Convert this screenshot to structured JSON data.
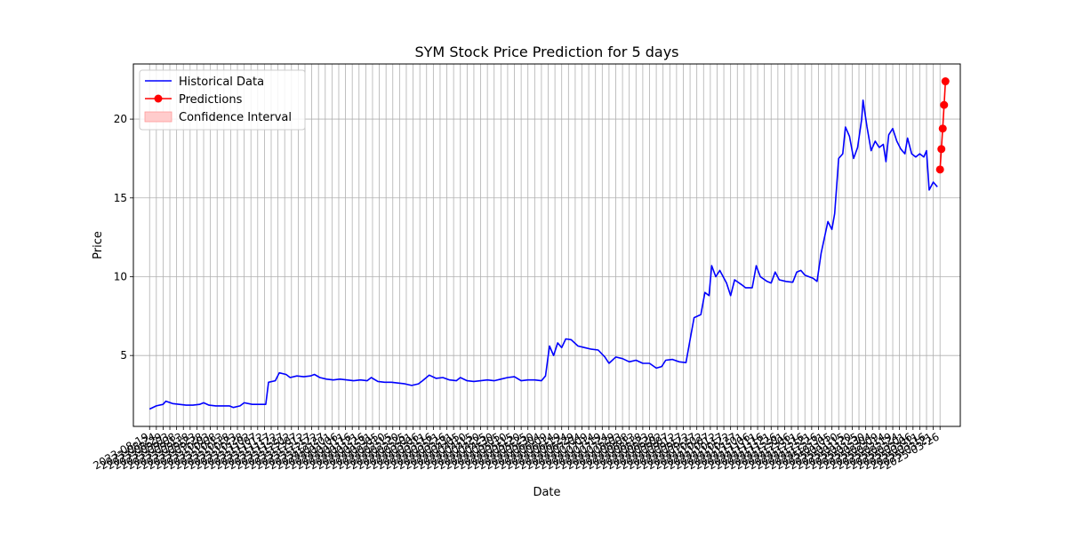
{
  "chart_data": {
    "type": "line",
    "title": "SYM Stock Price Prediction for 5 days",
    "xlabel": "Date",
    "ylabel": "Price",
    "grid": true,
    "legend_placement": "top-left",
    "legend": [
      "Historical Data",
      "Predictions",
      "Confidence Interval"
    ],
    "colors": {
      "historical": "#0000ff",
      "predictions": "#ff0000",
      "confidence": "#ffcccc",
      "grid": "#b0b0b0"
    },
    "xlim": [
      "2023-08-07",
      "2025-04-10"
    ],
    "ylim": [
      0.5,
      23.5
    ],
    "yticks": [
      5,
      10,
      15,
      20
    ],
    "xtick_start": "2023-08-19",
    "xtick_step_days": 5,
    "xtick_count": 118,
    "series": [
      {
        "name": "Historical Data",
        "style": "line",
        "points": [
          [
            "2023-08-19",
            1.6
          ],
          [
            "2023-08-24",
            1.8
          ],
          [
            "2023-08-29",
            1.9
          ],
          [
            "2023-08-31",
            2.1
          ],
          [
            "2023-09-05",
            1.95
          ],
          [
            "2023-09-10",
            1.9
          ],
          [
            "2023-09-15",
            1.85
          ],
          [
            "2023-09-20",
            1.85
          ],
          [
            "2023-09-25",
            1.9
          ],
          [
            "2023-09-28",
            2.0
          ],
          [
            "2023-10-02",
            1.85
          ],
          [
            "2023-10-07",
            1.8
          ],
          [
            "2023-10-12",
            1.8
          ],
          [
            "2023-10-17",
            1.8
          ],
          [
            "2023-10-20",
            1.7
          ],
          [
            "2023-10-25",
            1.8
          ],
          [
            "2023-10-28",
            2.0
          ],
          [
            "2023-11-03",
            1.9
          ],
          [
            "2023-11-08",
            1.9
          ],
          [
            "2023-11-13",
            1.9
          ],
          [
            "2023-11-15",
            3.3
          ],
          [
            "2023-11-20",
            3.4
          ],
          [
            "2023-11-23",
            3.9
          ],
          [
            "2023-11-28",
            3.8
          ],
          [
            "2023-12-01",
            3.6
          ],
          [
            "2023-12-06",
            3.7
          ],
          [
            "2023-12-11",
            3.65
          ],
          [
            "2023-12-16",
            3.7
          ],
          [
            "2023-12-19",
            3.8
          ],
          [
            "2023-12-23",
            3.6
          ],
          [
            "2023-12-28",
            3.5
          ],
          [
            "2024-01-02",
            3.45
          ],
          [
            "2024-01-07",
            3.5
          ],
          [
            "2024-01-12",
            3.45
          ],
          [
            "2024-01-17",
            3.4
          ],
          [
            "2024-01-22",
            3.45
          ],
          [
            "2024-01-27",
            3.4
          ],
          [
            "2024-01-30",
            3.6
          ],
          [
            "2024-02-04",
            3.35
          ],
          [
            "2024-02-09",
            3.3
          ],
          [
            "2024-02-14",
            3.3
          ],
          [
            "2024-02-19",
            3.25
          ],
          [
            "2024-02-24",
            3.2
          ],
          [
            "2024-02-29",
            3.1
          ],
          [
            "2024-03-05",
            3.2
          ],
          [
            "2024-03-08",
            3.4
          ],
          [
            "2024-03-13",
            3.75
          ],
          [
            "2024-03-18",
            3.55
          ],
          [
            "2024-03-23",
            3.6
          ],
          [
            "2024-03-28",
            3.45
          ],
          [
            "2024-04-02",
            3.4
          ],
          [
            "2024-04-05",
            3.6
          ],
          [
            "2024-04-10",
            3.4
          ],
          [
            "2024-04-15",
            3.35
          ],
          [
            "2024-04-20",
            3.4
          ],
          [
            "2024-04-25",
            3.45
          ],
          [
            "2024-04-30",
            3.4
          ],
          [
            "2024-05-05",
            3.5
          ],
          [
            "2024-05-10",
            3.6
          ],
          [
            "2024-05-15",
            3.65
          ],
          [
            "2024-05-20",
            3.4
          ],
          [
            "2024-05-25",
            3.45
          ],
          [
            "2024-05-30",
            3.45
          ],
          [
            "2024-06-04",
            3.4
          ],
          [
            "2024-06-07",
            3.7
          ],
          [
            "2024-06-10",
            5.6
          ],
          [
            "2024-06-13",
            5.0
          ],
          [
            "2024-06-16",
            5.8
          ],
          [
            "2024-06-19",
            5.5
          ],
          [
            "2024-06-22",
            6.05
          ],
          [
            "2024-06-26",
            6.0
          ],
          [
            "2024-07-01",
            5.6
          ],
          [
            "2024-07-06",
            5.5
          ],
          [
            "2024-07-11",
            5.4
          ],
          [
            "2024-07-16",
            5.35
          ],
          [
            "2024-07-21",
            4.9
          ],
          [
            "2024-07-24",
            4.5
          ],
          [
            "2024-07-29",
            4.9
          ],
          [
            "2024-08-03",
            4.8
          ],
          [
            "2024-08-08",
            4.6
          ],
          [
            "2024-08-13",
            4.7
          ],
          [
            "2024-08-18",
            4.5
          ],
          [
            "2024-08-23",
            4.5
          ],
          [
            "2024-08-28",
            4.2
          ],
          [
            "2024-09-01",
            4.3
          ],
          [
            "2024-09-04",
            4.7
          ],
          [
            "2024-09-09",
            4.75
          ],
          [
            "2024-09-14",
            4.6
          ],
          [
            "2024-09-19",
            4.55
          ],
          [
            "2024-09-22",
            6.0
          ],
          [
            "2024-09-25",
            7.4
          ],
          [
            "2024-09-30",
            7.6
          ],
          [
            "2024-10-03",
            9.0
          ],
          [
            "2024-10-06",
            8.8
          ],
          [
            "2024-10-08",
            10.7
          ],
          [
            "2024-10-11",
            10.0
          ],
          [
            "2024-10-14",
            10.4
          ],
          [
            "2024-10-19",
            9.6
          ],
          [
            "2024-10-22",
            8.8
          ],
          [
            "2024-10-25",
            9.8
          ],
          [
            "2024-10-30",
            9.5
          ],
          [
            "2024-11-02",
            9.3
          ],
          [
            "2024-11-07",
            9.3
          ],
          [
            "2024-11-10",
            10.7
          ],
          [
            "2024-11-13",
            10.0
          ],
          [
            "2024-11-18",
            9.7
          ],
          [
            "2024-11-21",
            9.6
          ],
          [
            "2024-11-24",
            10.3
          ],
          [
            "2024-11-27",
            9.8
          ],
          [
            "2024-12-02",
            9.7
          ],
          [
            "2024-12-07",
            9.65
          ],
          [
            "2024-12-10",
            10.3
          ],
          [
            "2024-12-13",
            10.4
          ],
          [
            "2024-12-16",
            10.1
          ],
          [
            "2024-12-19",
            10.0
          ],
          [
            "2024-12-22",
            9.9
          ],
          [
            "2024-12-25",
            9.7
          ],
          [
            "2024-12-28",
            11.5
          ],
          [
            "2025-01-02",
            13.5
          ],
          [
            "2025-01-05",
            13.0
          ],
          [
            "2025-01-07",
            14.0
          ],
          [
            "2025-01-10",
            17.5
          ],
          [
            "2025-01-13",
            17.8
          ],
          [
            "2025-01-15",
            19.5
          ],
          [
            "2025-01-18",
            18.9
          ],
          [
            "2025-01-21",
            17.5
          ],
          [
            "2025-01-24",
            18.2
          ],
          [
            "2025-01-27",
            20.0
          ],
          [
            "2025-01-28",
            21.2
          ],
          [
            "2025-01-31",
            19.5
          ],
          [
            "2025-02-03",
            18.0
          ],
          [
            "2025-02-06",
            18.6
          ],
          [
            "2025-02-09",
            18.2
          ],
          [
            "2025-02-12",
            18.4
          ],
          [
            "2025-02-14",
            17.3
          ],
          [
            "2025-02-16",
            19.0
          ],
          [
            "2025-02-19",
            19.4
          ],
          [
            "2025-02-22",
            18.6
          ],
          [
            "2025-02-25",
            18.1
          ],
          [
            "2025-02-28",
            17.8
          ],
          [
            "2025-03-02",
            18.8
          ],
          [
            "2025-03-05",
            17.8
          ],
          [
            "2025-03-08",
            17.6
          ],
          [
            "2025-03-11",
            17.8
          ],
          [
            "2025-03-14",
            17.6
          ],
          [
            "2025-03-16",
            18.0
          ],
          [
            "2025-03-18",
            15.5
          ],
          [
            "2025-03-21",
            16.0
          ],
          [
            "2025-03-24",
            15.7
          ]
        ]
      },
      {
        "name": "Predictions",
        "style": "line-marker",
        "points": [
          [
            "2025-03-26",
            16.8
          ],
          [
            "2025-03-27",
            18.1
          ],
          [
            "2025-03-28",
            19.4
          ],
          [
            "2025-03-29",
            20.9
          ],
          [
            "2025-03-30",
            22.4
          ]
        ]
      },
      {
        "name": "Confidence Interval",
        "style": "band",
        "points": []
      }
    ]
  }
}
